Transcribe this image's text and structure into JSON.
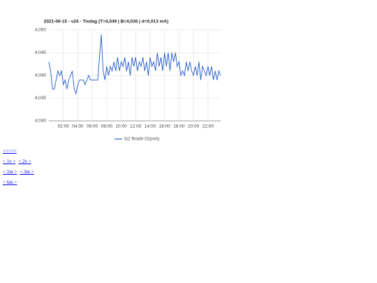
{
  "chart_data": {
    "type": "line",
    "title": "2021-06-15 - v24 - Tisdag (T=4,049 | B=4,036 | d=0,013 mA)",
    "x": [
      0,
      0.25,
      0.5,
      0.75,
      1,
      1.25,
      1.5,
      1.75,
      2,
      2.25,
      2.5,
      2.75,
      3,
      3.25,
      3.5,
      3.75,
      4,
      4.25,
      4.5,
      4.75,
      5,
      5.25,
      5.5,
      5.75,
      6,
      6.25,
      6.5,
      6.75,
      7,
      7.25,
      7.5,
      7.75,
      8,
      8.25,
      8.5,
      8.75,
      9,
      9.25,
      9.5,
      9.75,
      10,
      10.25,
      10.5,
      10.75,
      11,
      11.25,
      11.5,
      11.75,
      12,
      12.25,
      12.5,
      12.75,
      13,
      13.25,
      13.5,
      13.75,
      14,
      14.25,
      14.5,
      14.75,
      15,
      15.25,
      15.5,
      15.75,
      16,
      16.25,
      16.5,
      16.75,
      17,
      17.25,
      17.5,
      17.75,
      18,
      18.25,
      18.5,
      18.75,
      19,
      19.25,
      19.5,
      19.75,
      20,
      20.25,
      20.5,
      20.75,
      21,
      21.25,
      21.5,
      21.75,
      22,
      22.25,
      22.5,
      22.75,
      23,
      23.25,
      23.5,
      23.75
    ],
    "series": [
      {
        "name": "G2 Roxfri 02(mA)",
        "color": "#3366cc",
        "values": [
          4.043,
          4.041,
          4.037,
          4.037,
          4.039,
          4.041,
          4.04,
          4.041,
          4.038,
          4.039,
          4.037,
          4.039,
          4.04,
          4.041,
          4.037,
          4.036,
          4.038,
          4.039,
          4.039,
          4.039,
          4.038,
          4.039,
          4.04,
          4.039,
          4.039,
          4.039,
          4.039,
          4.039,
          4.044,
          4.049,
          4.041,
          4.039,
          4.042,
          4.04,
          4.042,
          4.041,
          4.043,
          4.041,
          4.044,
          4.041,
          4.043,
          4.042,
          4.044,
          4.041,
          4.043,
          4.04,
          4.044,
          4.042,
          4.044,
          4.041,
          4.043,
          4.042,
          4.044,
          4.041,
          4.043,
          4.04,
          4.044,
          4.042,
          4.043,
          4.041,
          4.045,
          4.042,
          4.044,
          4.041,
          4.045,
          4.042,
          4.045,
          4.041,
          4.045,
          4.043,
          4.045,
          4.042,
          4.043,
          4.04,
          4.041,
          4.04,
          4.043,
          4.041,
          4.043,
          4.041,
          4.04,
          4.042,
          4.04,
          4.043,
          4.039,
          4.042,
          4.041,
          4.04,
          4.042,
          4.04,
          4.042,
          4.039,
          4.041,
          4.039,
          4.041,
          4.04
        ]
      }
    ],
    "xlim": [
      0,
      23.75
    ],
    "xticks": [
      {
        "value": 2,
        "label": "02:00"
      },
      {
        "value": 4,
        "label": "04:00"
      },
      {
        "value": 6,
        "label": "06:00"
      },
      {
        "value": 8,
        "label": "08:00"
      },
      {
        "value": 10,
        "label": "10:00"
      },
      {
        "value": 12,
        "label": "12:00"
      },
      {
        "value": 14,
        "label": "14:00"
      },
      {
        "value": 16,
        "label": "16:00"
      },
      {
        "value": 18,
        "label": "18:00"
      },
      {
        "value": 20,
        "label": "20:00"
      },
      {
        "value": 22,
        "label": "22:00"
      }
    ],
    "ylim": [
      4.03,
      4.05
    ],
    "yticks": [
      {
        "value": 4.03,
        "label": "4,030"
      },
      {
        "value": 4.035,
        "label": "4,035"
      },
      {
        "value": 4.04,
        "label": "4,040"
      },
      {
        "value": 4.045,
        "label": "4,045"
      },
      {
        "value": 4.05,
        "label": "4,050"
      }
    ],
    "grid": true,
    "legend": "bottom"
  },
  "links": [
    [
      "<<<<<"
    ],
    [
      "< 1v >",
      "< 2v >"
    ],
    [
      "< 1m >",
      "< 3m >"
    ],
    [
      "< 6m >"
    ]
  ]
}
